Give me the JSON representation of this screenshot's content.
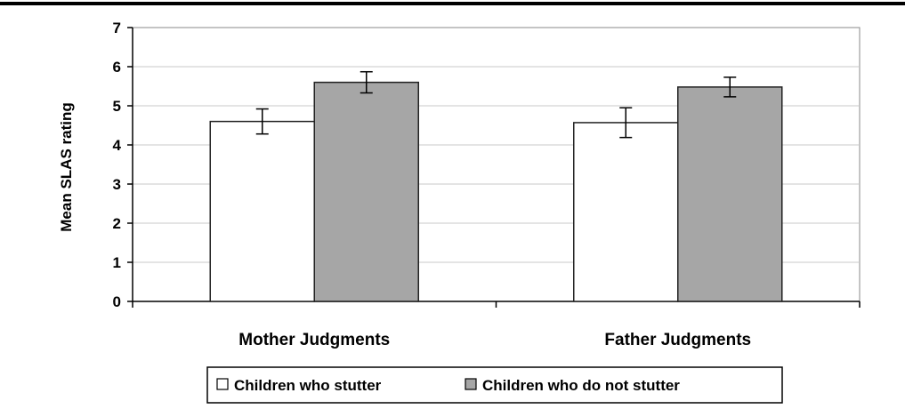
{
  "chart_data": {
    "type": "bar",
    "title": "",
    "xlabel": "",
    "ylabel": "Mean SLAS rating",
    "ylim": [
      0,
      7
    ],
    "yticks": [
      0,
      1,
      2,
      3,
      4,
      5,
      6,
      7
    ],
    "grid": true,
    "legend_position": "bottom",
    "categories": [
      "Mother Judgments",
      "Father Judgments"
    ],
    "series": [
      {
        "name": "Children who stutter",
        "values": [
          4.6,
          4.57
        ],
        "error": [
          0.32,
          0.38
        ],
        "color": "#ffffff"
      },
      {
        "name": "Children who do not stutter",
        "values": [
          5.6,
          5.48
        ],
        "error": [
          0.27,
          0.25
        ],
        "color": "#a6a6a6"
      }
    ]
  }
}
